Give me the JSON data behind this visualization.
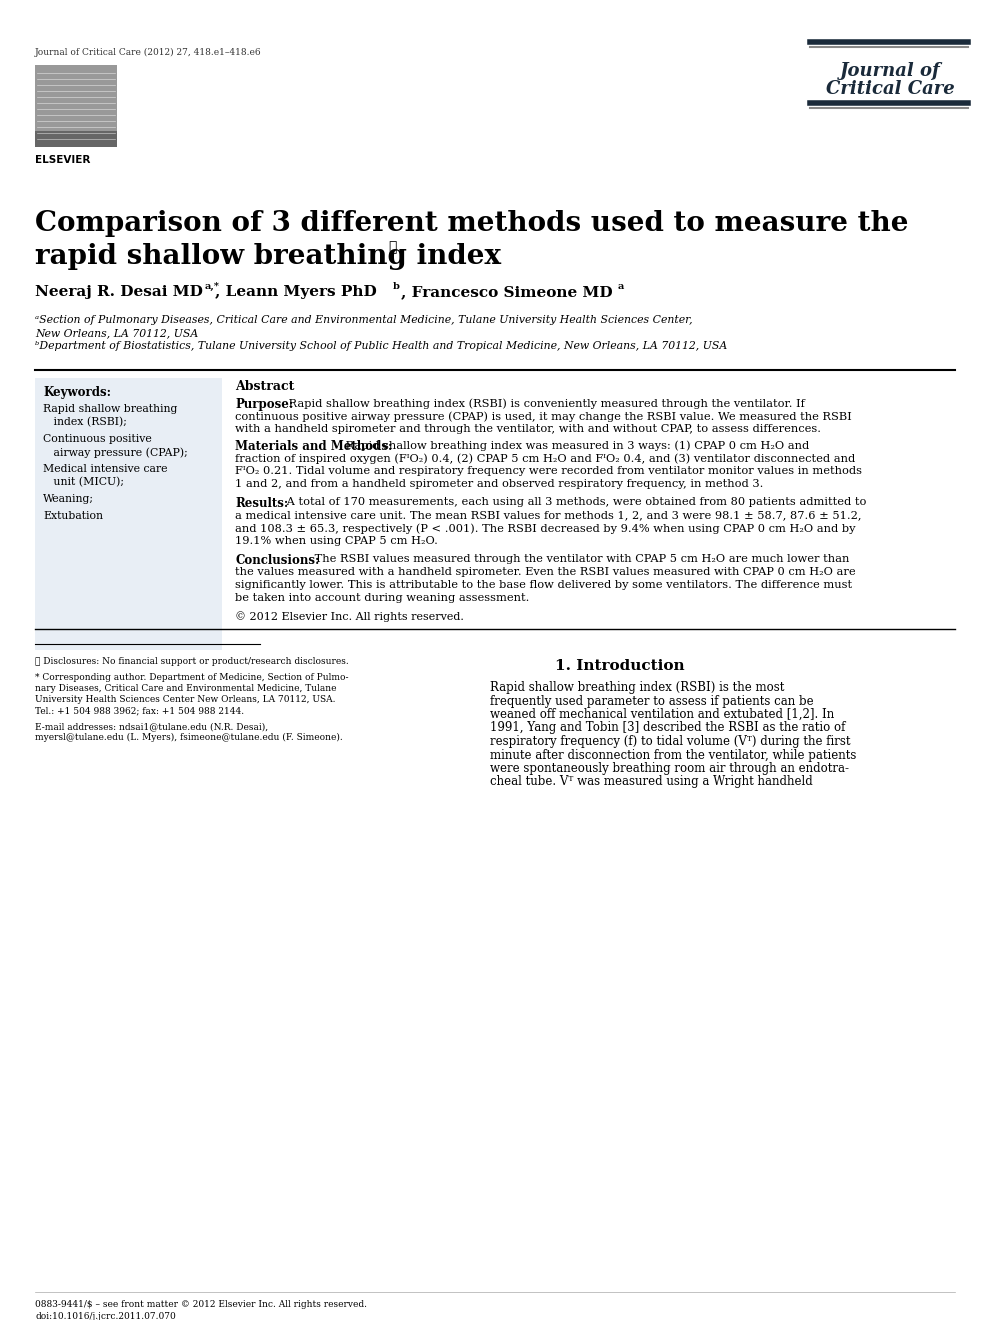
{
  "journal_ref": "Journal of Critical Care (2012) 27, 418.e1–418.e6",
  "journal_name_line1": "Journal of",
  "journal_name_line2": "Critical Care",
  "title_line1": "Comparison of 3 different methods used to measure the",
  "title_line2": "rapid shallow breathing index",
  "title_star": "☆",
  "keywords_title": "Keywords:",
  "keywords": [
    "Rapid shallow breathing\n   index (RSBI);",
    "Continuous positive\n   airway pressure (CPAP);",
    "Medical intensive care\n   unit (MICU);",
    "Weaning;",
    "Extubation"
  ],
  "abstract_title": "Abstract",
  "purpose_label": "Purpose:",
  "mm_label": "Materials and Methods:",
  "results_label": "Results:",
  "conclusions_label": "Conclusions:",
  "copyright": "© 2012 Elsevier Inc. All rights reserved.",
  "intro_title": "1. Introduction",
  "footer_issn": "0883-9441/$ – see front matter © 2012 Elsevier Inc. All rights reserved.",
  "footer_doi": "doi:10.1016/j.jcrc.2011.07.070",
  "bg_color": "#ffffff",
  "keyword_bg": "#e8eef5"
}
